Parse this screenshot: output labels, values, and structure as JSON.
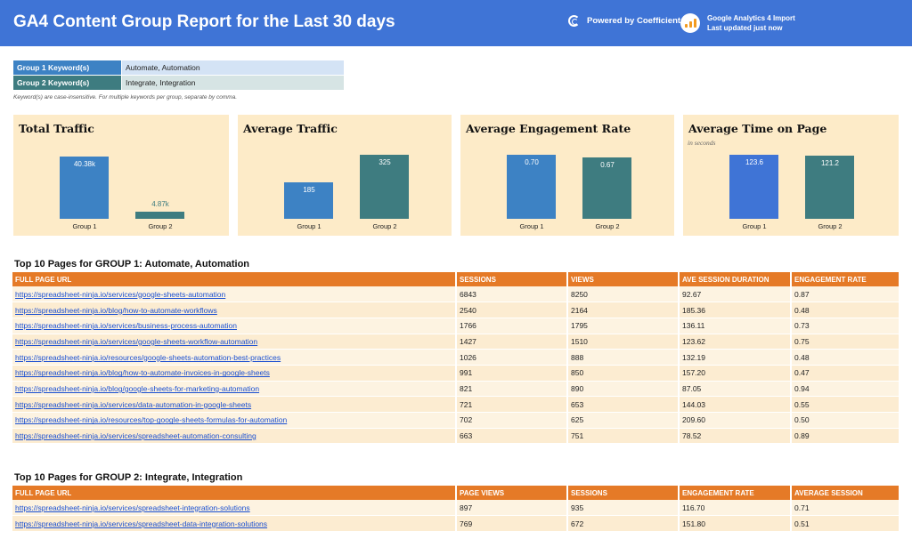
{
  "header": {
    "title": "GA4 Content Group Report for the Last 30 days",
    "powered_by": "Powered by Coefficient",
    "ga_line1": "Google Analytics 4 Import",
    "ga_line2": "Last updated just now"
  },
  "keywords": {
    "group1_label": "Group 1 Keyword(s)",
    "group1_value": "Automate, Automation",
    "group2_label": "Group 2 Keyword(s)",
    "group2_value": "Integrate, Integration",
    "note": "Keyword(s) are case-insensitive. For multiple keywords per group, separate by comma."
  },
  "colors": {
    "group1": "#3d82c4",
    "group2": "#3e7c80",
    "header": "#3f74d6",
    "table_header": "#e57a27",
    "card_bg": "#fdebc8"
  },
  "chart_data": [
    {
      "type": "bar",
      "title": "Total Traffic",
      "categories": [
        "Group 1",
        "Group 2"
      ],
      "values": [
        40380,
        4870
      ],
      "labels": [
        "40.38k",
        "4.87k"
      ],
      "ylim": [
        0,
        50000
      ]
    },
    {
      "type": "bar",
      "title": "Average Traffic",
      "categories": [
        "Group 1",
        "Group 2"
      ],
      "values": [
        185,
        325
      ],
      "labels": [
        "185",
        "325"
      ],
      "ylim": [
        0,
        400
      ]
    },
    {
      "type": "bar",
      "title": "Average Engagement Rate",
      "categories": [
        "Group 1",
        "Group 2"
      ],
      "values": [
        0.7,
        0.67
      ],
      "labels": [
        "0.70",
        "0.67"
      ],
      "ylim": [
        0,
        0.8
      ]
    },
    {
      "type": "bar",
      "title": "Average Time on Page",
      "subtitle": "in seconds",
      "categories": [
        "Group 1",
        "Group 2"
      ],
      "values": [
        123.6,
        121.2
      ],
      "labels": [
        "123.6",
        "121.2"
      ],
      "ylim": [
        0,
        140
      ]
    }
  ],
  "group1_table": {
    "title": "Top 10 Pages for GROUP 1: Automate, Automation",
    "columns": [
      "FULL PAGE URL",
      "SESSIONS",
      "VIEWS",
      "AVE SESSION DURATION",
      "ENGAGEMENT RATE"
    ],
    "rows": [
      [
        "https://spreadsheet-ninja.io/services/google-sheets-automation",
        "6843",
        "8250",
        "92.67",
        "0.87"
      ],
      [
        "https://spreadsheet-ninja.io/blog/how-to-automate-workflows",
        "2540",
        "2164",
        "185.36",
        "0.48"
      ],
      [
        "https://spreadsheet-ninja.io/services/business-process-automation",
        "1766",
        "1795",
        "136.11",
        "0.73"
      ],
      [
        "https://spreadsheet-ninja.io/services/google-sheets-workflow-automation",
        "1427",
        "1510",
        "123.62",
        "0.75"
      ],
      [
        "https://spreadsheet-ninja.io/resources/google-sheets-automation-best-practices",
        "1026",
        "888",
        "132.19",
        "0.48"
      ],
      [
        "https://spreadsheet-ninja.io/blog/how-to-automate-invoices-in-google-sheets",
        "991",
        "850",
        "157.20",
        "0.47"
      ],
      [
        "https://spreadsheet-ninja.io/blog/google-sheets-for-marketing-automation",
        "821",
        "890",
        "87.05",
        "0.94"
      ],
      [
        "https://spreadsheet-ninja.io/services/data-automation-in-google-sheets",
        "721",
        "653",
        "144.03",
        "0.55"
      ],
      [
        "https://spreadsheet-ninja.io/resources/top-google-sheets-formulas-for-automation",
        "702",
        "625",
        "209.60",
        "0.50"
      ],
      [
        "https://spreadsheet-ninja.io/services/spreadsheet-automation-consulting",
        "663",
        "751",
        "78.52",
        "0.89"
      ]
    ]
  },
  "group2_table": {
    "title": "Top 10 Pages for GROUP 2: Integrate, Integration",
    "columns": [
      "FULL PAGE URL",
      "PAGE VIEWS",
      "SESSIONS",
      "ENGAGEMENT RATE",
      "AVERAGE SESSION"
    ],
    "rows": [
      [
        "https://spreadsheet-ninja.io/services/spreadsheet-integration-solutions",
        "897",
        "935",
        "116.70",
        "0.71"
      ],
      [
        "https://spreadsheet-ninja.io/services/spreadsheet-data-integration-solutions",
        "769",
        "672",
        "151.80",
        "0.51"
      ]
    ]
  }
}
